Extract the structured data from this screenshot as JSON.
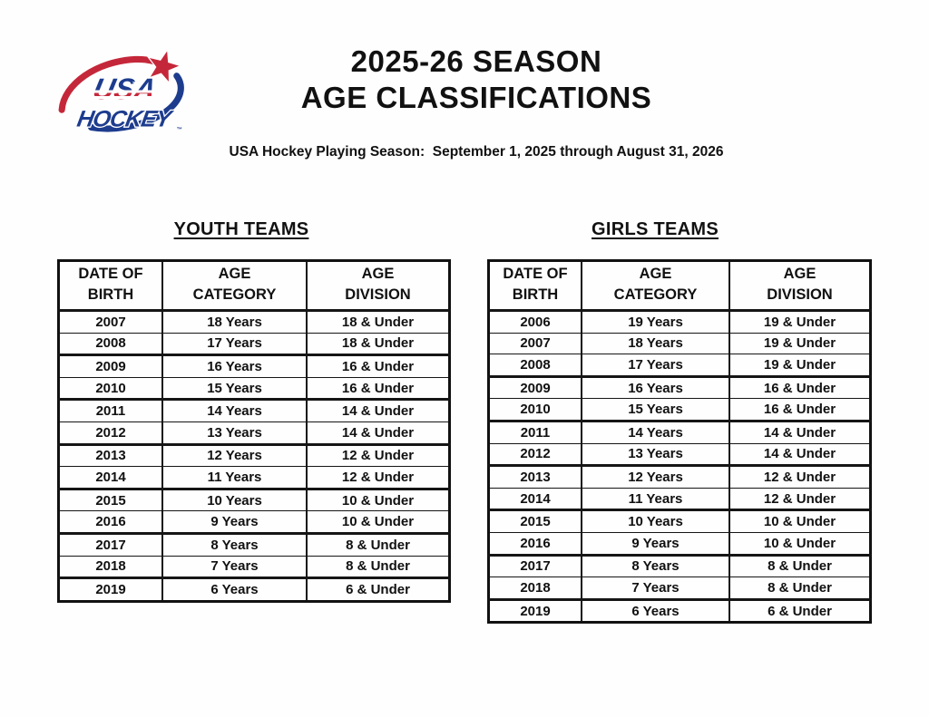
{
  "header": {
    "title_line1": "2025-26 SEASON",
    "title_line2": "AGE CLASSIFICATIONS",
    "subtitle": "USA Hockey Playing Season:  September 1, 2025 through August 31, 2026"
  },
  "logo": {
    "usa": "USA",
    "hockey": "HOCKEY",
    "trademark": "™",
    "red": "#c5273a",
    "blue": "#1d3c8e"
  },
  "colors": {
    "text": "#111111",
    "table_border": "#111111",
    "background": "#ffffff"
  },
  "tables": [
    {
      "heading": "YOUTH TEAMS",
      "columns": [
        {
          "line1": "DATE OF",
          "line2": "BIRTH"
        },
        {
          "line1": "AGE",
          "line2": "CATEGORY"
        },
        {
          "line1": "AGE",
          "line2": "DIVISION"
        }
      ],
      "rows": [
        [
          "2007",
          "18 Years",
          "18 & Under"
        ],
        [
          "2008",
          "17 Years",
          "18 & Under"
        ],
        [
          "2009",
          "16 Years",
          "16 & Under"
        ],
        [
          "2010",
          "15 Years",
          "16 & Under"
        ],
        [
          "2011",
          "14 Years",
          "14 & Under"
        ],
        [
          "2012",
          "13 Years",
          "14 & Under"
        ],
        [
          "2013",
          "12 Years",
          "12 & Under"
        ],
        [
          "2014",
          "11 Years",
          "12 & Under"
        ],
        [
          "2015",
          "10 Years",
          "10 & Under"
        ],
        [
          "2016",
          "9 Years",
          "10 & Under"
        ],
        [
          "2017",
          "8 Years",
          "8 & Under"
        ],
        [
          "2018",
          "7 Years",
          "8 & Under"
        ],
        [
          "2019",
          "6 Years",
          "6 & Under"
        ]
      ]
    },
    {
      "heading": "GIRLS TEAMS",
      "columns": [
        {
          "line1": "DATE OF",
          "line2": "BIRTH"
        },
        {
          "line1": "AGE",
          "line2": "CATEGORY"
        },
        {
          "line1": "AGE",
          "line2": "DIVISION"
        }
      ],
      "rows": [
        [
          "2006",
          "19 Years",
          "19 & Under"
        ],
        [
          "2007",
          "18 Years",
          "19 & Under"
        ],
        [
          "2008",
          "17 Years",
          "19 & Under"
        ],
        [
          "2009",
          "16 Years",
          "16 & Under"
        ],
        [
          "2010",
          "15 Years",
          "16 & Under"
        ],
        [
          "2011",
          "14 Years",
          "14 & Under"
        ],
        [
          "2012",
          "13 Years",
          "14 & Under"
        ],
        [
          "2013",
          "12 Years",
          "12 & Under"
        ],
        [
          "2014",
          "11 Years",
          "12 & Under"
        ],
        [
          "2015",
          "10 Years",
          "10 & Under"
        ],
        [
          "2016",
          "9 Years",
          "10 & Under"
        ],
        [
          "2017",
          "8 Years",
          "8 & Under"
        ],
        [
          "2018",
          "7 Years",
          "8 & Under"
        ],
        [
          "2019",
          "6 Years",
          "6 & Under"
        ]
      ]
    }
  ]
}
